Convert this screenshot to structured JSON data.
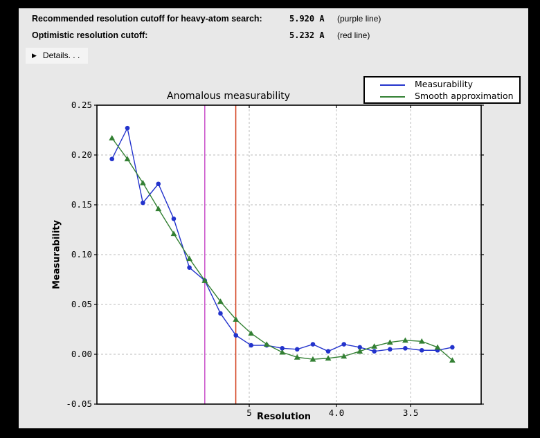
{
  "header": {
    "rows": [
      {
        "label": "Recommended resolution cutoff for heavy-atom search:",
        "value": "5.920 A",
        "note": "(purple line)"
      },
      {
        "label": "Optimistic resolution cutoff:",
        "value": "5.232 A",
        "note": "(red line)"
      }
    ],
    "details_label": "Details. . .",
    "details_icon": "collapsed-triangle"
  },
  "chart_data": {
    "type": "line",
    "title": "Anomalous measurability",
    "xlabel": "Resolution",
    "ylabel": "Measurability",
    "grid": true,
    "legend_position": "upper right",
    "x_axis": {
      "scale": "inverse_square_resolution_angstrom",
      "ticks": [
        5,
        4.0,
        3.5
      ],
      "tick_labels": [
        "5",
        "4.0",
        "3.5"
      ],
      "s_range": [
        0.000714,
        0.099821
      ]
    },
    "y_axis": {
      "range": [
        -0.05,
        0.25
      ],
      "ticks": [
        0.25,
        0.2,
        0.15,
        0.1,
        0.05,
        0.0,
        -0.05
      ],
      "tick_labels": [
        "0.25",
        "0.20",
        "0.15",
        "0.10",
        "0.05",
        "0.00",
        "-0.05"
      ]
    },
    "resolution_A": [
      14.76,
      10.8,
      8.92,
      7.77,
      6.98,
      6.38,
      5.92,
      5.54,
      5.23,
      4.97,
      4.74,
      4.54,
      4.37,
      4.21,
      4.07,
      3.94,
      3.82,
      3.72,
      3.62,
      3.53,
      3.44,
      3.36,
      3.29
    ],
    "series": [
      {
        "name": "Measurability",
        "color": "#2333cc",
        "marker": "circle",
        "values": [
          0.196,
          0.227,
          0.152,
          0.171,
          0.136,
          0.087,
          0.074,
          0.041,
          0.019,
          0.009,
          0.009,
          0.006,
          0.005,
          0.01,
          0.003,
          0.01,
          0.007,
          0.003,
          0.005,
          0.006,
          0.004,
          0.004,
          0.007
        ]
      },
      {
        "name": "Smooth approximation",
        "color": "#338033",
        "marker": "triangle",
        "values": [
          0.217,
          0.196,
          0.172,
          0.146,
          0.121,
          0.096,
          0.074,
          0.053,
          0.035,
          0.021,
          0.01,
          0.002,
          -0.003,
          -0.005,
          -0.004,
          -0.002,
          0.003,
          0.008,
          0.012,
          0.014,
          0.013,
          0.007,
          -0.006
        ]
      }
    ],
    "cutoff_lines": [
      {
        "name": "purple line",
        "resolution_A": 5.92,
        "color": "#c94fc9"
      },
      {
        "name": "red line",
        "resolution_A": 5.232,
        "color": "#d23b17"
      }
    ],
    "colors": {
      "plot_background": "#ffffff",
      "figure_background": "#e8e8e8",
      "grid": "#bbbbbb",
      "frame": "#000000"
    }
  }
}
